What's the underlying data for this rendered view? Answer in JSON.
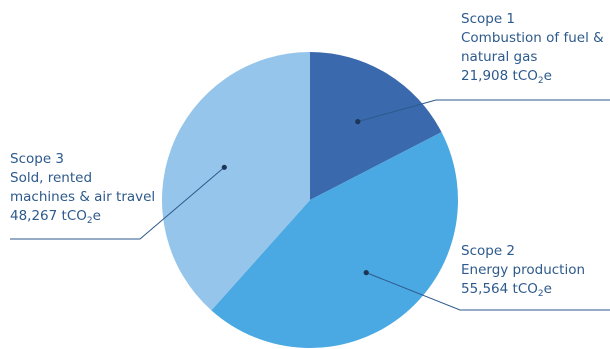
{
  "chart_data": {
    "type": "pie",
    "unit_prefix": "tCO",
    "unit_subscript": "2",
    "unit_suffix": "e",
    "slices": [
      {
        "scope": "Scope 1",
        "desc": [
          "Combustion of fuel &",
          "natural gas"
        ],
        "value": 21908,
        "value_text": "21,908",
        "color": "#3a6aad"
      },
      {
        "scope": "Scope 2",
        "desc": [
          "Energy production"
        ],
        "value": 55564,
        "value_text": "55,564",
        "color": "#4aa9e2"
      },
      {
        "scope": "Scope 3",
        "desc": [
          "Sold, rented",
          "machines & air travel"
        ],
        "value": 48267,
        "value_text": "48,267",
        "color": "#95c5ea"
      }
    ]
  }
}
